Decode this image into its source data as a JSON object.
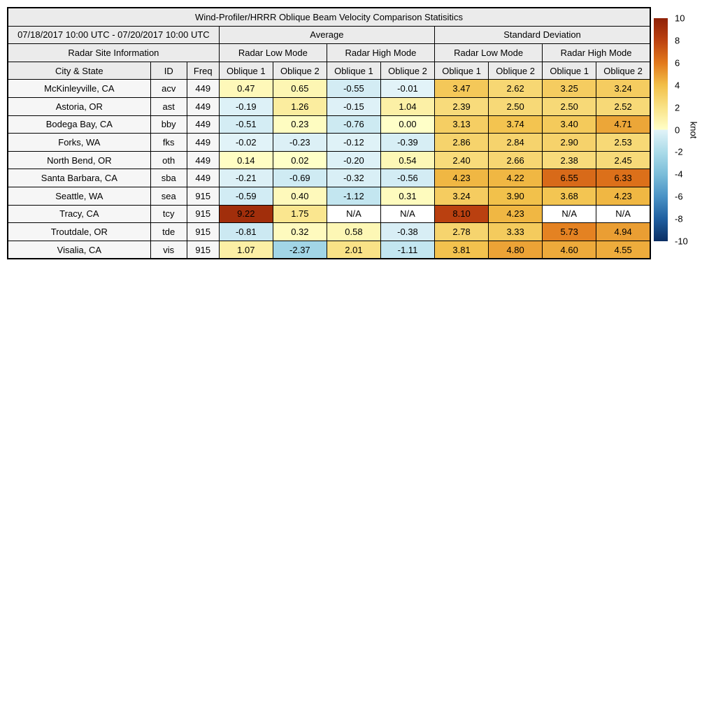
{
  "chart_data": {
    "type": "heatmap",
    "title": "Wind-Profiler/HRRR Oblique Beam Velocity Comparison Statisitics",
    "date_range": "07/18/2017 10:00 UTC - 07/20/2017 10:00 UTC",
    "site_info_header": "Radar Site Information",
    "group_headers": [
      "Average",
      "Standard Deviation"
    ],
    "mode_headers": [
      "Radar Low Mode",
      "Radar High Mode",
      "Radar Low Mode",
      "Radar High Mode"
    ],
    "columns": [
      "City & State",
      "ID",
      "Freq",
      "Oblique 1",
      "Oblique 2",
      "Oblique 1",
      "Oblique 2",
      "Oblique 1",
      "Oblique 2",
      "Oblique 1",
      "Oblique 2"
    ],
    "rows": [
      {
        "city": "McKinleyville, CA",
        "id": "acv",
        "freq": "449",
        "values": [
          "0.47",
          "0.65",
          "-0.55",
          "-0.01",
          "3.47",
          "2.62",
          "3.25",
          "3.24"
        ]
      },
      {
        "city": "Astoria, OR",
        "id": "ast",
        "freq": "449",
        "values": [
          "-0.19",
          "1.26",
          "-0.15",
          "1.04",
          "2.39",
          "2.50",
          "2.50",
          "2.52"
        ]
      },
      {
        "city": "Bodega Bay, CA",
        "id": "bby",
        "freq": "449",
        "values": [
          "-0.51",
          "0.23",
          "-0.76",
          "0.00",
          "3.13",
          "3.74",
          "3.40",
          "4.71"
        ]
      },
      {
        "city": "Forks, WA",
        "id": "fks",
        "freq": "449",
        "values": [
          "-0.02",
          "-0.23",
          "-0.12",
          "-0.39",
          "2.86",
          "2.84",
          "2.90",
          "2.53"
        ]
      },
      {
        "city": "North Bend, OR",
        "id": "oth",
        "freq": "449",
        "values": [
          "0.14",
          "0.02",
          "-0.20",
          "0.54",
          "2.40",
          "2.66",
          "2.38",
          "2.45"
        ]
      },
      {
        "city": "Santa Barbara, CA",
        "id": "sba",
        "freq": "449",
        "values": [
          "-0.21",
          "-0.69",
          "-0.32",
          "-0.56",
          "4.23",
          "4.22",
          "6.55",
          "6.33"
        ]
      },
      {
        "city": "Seattle, WA",
        "id": "sea",
        "freq": "915",
        "values": [
          "-0.59",
          "0.40",
          "-1.12",
          "0.31",
          "3.24",
          "3.90",
          "3.68",
          "4.23"
        ]
      },
      {
        "city": "Tracy, CA",
        "id": "tcy",
        "freq": "915",
        "values": [
          "9.22",
          "1.75",
          "N/A",
          "N/A",
          "8.10",
          "4.23",
          "N/A",
          "N/A"
        ]
      },
      {
        "city": "Troutdale, OR",
        "id": "tde",
        "freq": "915",
        "values": [
          "-0.81",
          "0.32",
          "0.58",
          "-0.38",
          "2.78",
          "3.33",
          "5.73",
          "4.94"
        ]
      },
      {
        "city": "Visalia, CA",
        "id": "vis",
        "freq": "915",
        "values": [
          "1.07",
          "-2.37",
          "2.01",
          "-1.11",
          "3.81",
          "4.80",
          "4.60",
          "4.55"
        ]
      }
    ],
    "colorbar": {
      "unit": "knot",
      "min": -10,
      "max": 10,
      "ticks": [
        10,
        8,
        6,
        4,
        2,
        0,
        -2,
        -4,
        -6,
        -8,
        -10
      ],
      "stops_positive": [
        [
          0,
          "#ffffc8"
        ],
        [
          2,
          "#f9e287"
        ],
        [
          4,
          "#f2bf48"
        ],
        [
          6,
          "#e2791c"
        ],
        [
          8,
          "#bc4210"
        ],
        [
          10,
          "#8f2108"
        ]
      ],
      "stops_negative": [
        [
          0,
          "#e2f3f8"
        ],
        [
          -2,
          "#abdbe9"
        ],
        [
          -4,
          "#7bbdd9"
        ],
        [
          -6,
          "#4a92c5"
        ],
        [
          -8,
          "#1f5fa0"
        ],
        [
          -10,
          "#0b2e63"
        ]
      ],
      "na_value": "N/A",
      "na_color": "#ffffff"
    },
    "styles": {
      "header_bg": "#ebebeb",
      "site_cell_bg": "#f6f6f6",
      "border_color": "#000000"
    }
  }
}
